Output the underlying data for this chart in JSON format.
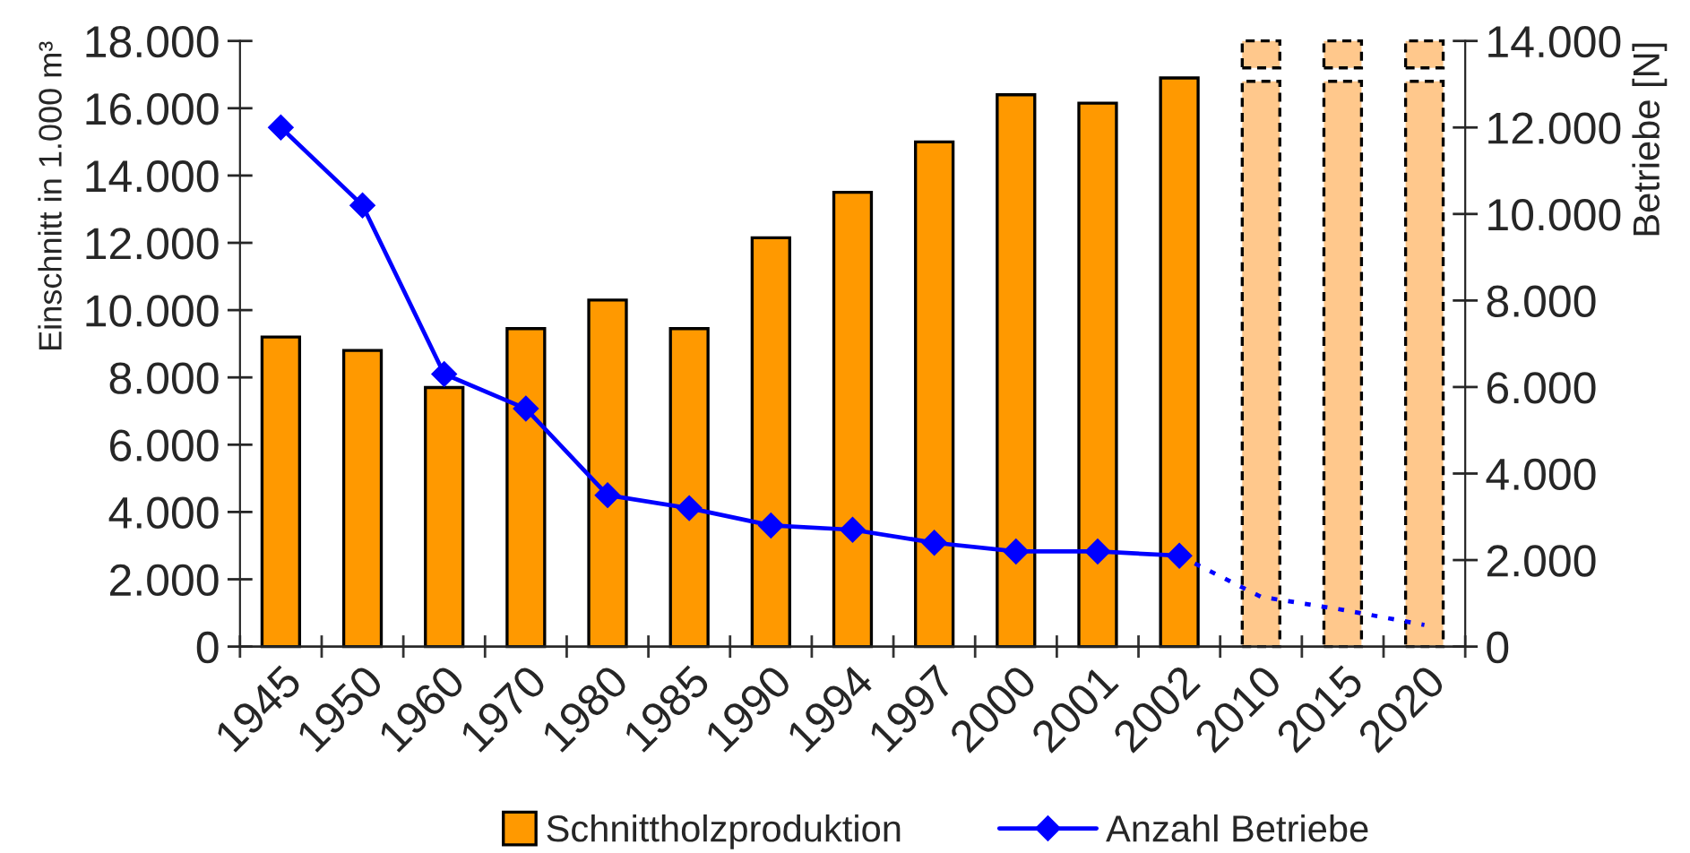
{
  "chart_data": {
    "type": "bar",
    "categories": [
      "1945",
      "1950",
      "1960",
      "1970",
      "1980",
      "1985",
      "1990",
      "1994",
      "1997",
      "2000",
      "2001",
      "2002",
      "2010",
      "2015",
      "2020"
    ],
    "ylabel": "Einschnitt in 1.000 m³",
    "y2label": "Betriebe [N]",
    "ylim": [
      0,
      18000
    ],
    "yticks": [
      0,
      {
        "value": 2000,
        "label": "2.000"
      },
      {
        "value": 4000,
        "label": "4.000"
      },
      {
        "value": 6000,
        "label": "6.000"
      },
      {
        "value": 8000,
        "label": "8.000"
      },
      {
        "value": 10000,
        "label": "10.000"
      },
      {
        "value": 12000,
        "label": "12.000"
      },
      {
        "value": 14000,
        "label": "14.000"
      },
      {
        "value": 16000,
        "label": "16.000"
      },
      {
        "value": 18000,
        "label": "18.000"
      }
    ],
    "y2lim": [
      0,
      14000
    ],
    "y2ticks": [
      0,
      {
        "value": 2000,
        "label": "2.000"
      },
      {
        "value": 4000,
        "label": "4.000"
      },
      {
        "value": 6000,
        "label": "6.000"
      },
      {
        "value": 8000,
        "label": "8.000"
      },
      {
        "value": 10000,
        "label": "10.000"
      },
      {
        "value": 12000,
        "label": "12.000"
      },
      {
        "value": 14000,
        "label": "14.000"
      }
    ],
    "series": [
      {
        "name": "Schnittholzproduktion",
        "color": "#ff9900",
        "values": [
          9200,
          8800,
          7700,
          9450,
          10300,
          9450,
          12150,
          13500,
          15000,
          16400,
          16150,
          16900,
          null,
          null,
          null
        ]
      },
      {
        "color": "#ffc88c",
        "line_style": "dashed",
        "values": [
          null,
          null,
          null,
          null,
          null,
          null,
          null,
          null,
          null,
          null,
          null,
          null,
          16800,
          16800,
          16800
        ]
      },
      {
        "color": "#ffc88c",
        "line_style": "dashed",
        "base": [
          null,
          null,
          null,
          null,
          null,
          null,
          null,
          null,
          null,
          null,
          null,
          null,
          17200,
          17200,
          17200
        ],
        "values": [
          null,
          null,
          null,
          null,
          null,
          null,
          null,
          null,
          null,
          null,
          null,
          null,
          800,
          800,
          800
        ]
      },
      {
        "name": "Anzahl Betriebe",
        "type": "line",
        "axis": "y2",
        "color": "#0000ff",
        "marker": "diamond",
        "line_style": "solid",
        "values": [
          12000,
          10200,
          6300,
          5500,
          3500,
          3200,
          2800,
          2700,
          2400,
          2200,
          2200,
          2100,
          null,
          null,
          null
        ]
      },
      {
        "type": "line",
        "axis": "y2",
        "color": "#0000ff",
        "marker": "none",
        "line_style": "dashed",
        "values": [
          null,
          null,
          null,
          null,
          null,
          null,
          null,
          null,
          null,
          null,
          null,
          2100,
          1150,
          850,
          500
        ]
      }
    ],
    "legend": "bottom"
  }
}
